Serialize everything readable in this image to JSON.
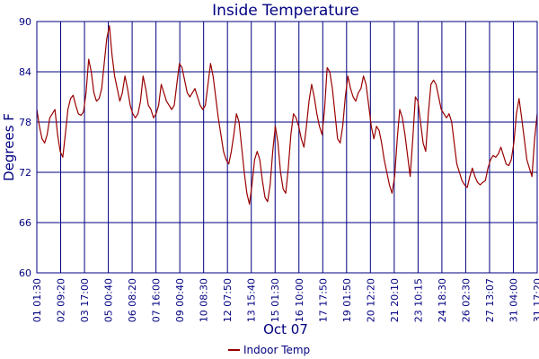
{
  "chart_data": {
    "type": "line",
    "title": "Inside Temperature",
    "xlabel": "Oct 07",
    "ylabel": "Degrees F",
    "ylim": [
      60,
      90
    ],
    "yticks": [
      60,
      66,
      72,
      78,
      84,
      90
    ],
    "xtick_labels": [
      "01 01:30",
      "02 09:20",
      "03 17:00",
      "05 00:40",
      "06 08:20",
      "07 16:00",
      "09 00:40",
      "10 08:30",
      "12 07:50",
      "13 15:40",
      "15 01:30",
      "16 10:00",
      "17 17:50",
      "19 01:50",
      "20 12:20",
      "21 20:10",
      "23 10:15",
      "24 18:30",
      "26 02:30",
      "27 13:07",
      "31 04:00",
      "31 17:20"
    ],
    "grid": true,
    "legend_position": "bottom-center",
    "colors": {
      "line": "#990000",
      "grid": "#000080",
      "axis_text": "#000080"
    },
    "series": [
      {
        "name": "Indoor Temp",
        "values": [
          79.5,
          77.5,
          76.0,
          75.5,
          76.5,
          78.5,
          79.0,
          79.5,
          76.5,
          74.5,
          73.8,
          76.5,
          79.5,
          80.8,
          81.2,
          80.0,
          79.0,
          78.8,
          79.2,
          81.5,
          85.5,
          84.0,
          81.5,
          80.5,
          80.8,
          82.0,
          85.0,
          88.0,
          89.5,
          86.0,
          83.5,
          82.0,
          80.5,
          81.5,
          83.5,
          82.0,
          80.0,
          79.0,
          78.5,
          79.0,
          80.5,
          83.5,
          82.0,
          80.0,
          79.5,
          78.5,
          79.0,
          80.0,
          82.5,
          81.5,
          80.5,
          80.0,
          79.5,
          80.0,
          82.5,
          85.0,
          84.5,
          83.0,
          81.5,
          81.0,
          81.5,
          82.0,
          81.0,
          80.0,
          79.5,
          80.0,
          82.5,
          85.0,
          83.5,
          81.0,
          78.5,
          76.5,
          74.5,
          73.5,
          73.0,
          74.5,
          76.5,
          79.0,
          78.0,
          75.0,
          72.0,
          69.5,
          68.2,
          70.5,
          73.5,
          74.5,
          73.5,
          71.0,
          69.0,
          68.5,
          70.5,
          74.5,
          77.5,
          75.5,
          72.0,
          70.0,
          69.5,
          72.5,
          76.5,
          79.0,
          78.5,
          77.5,
          76.0,
          75.0,
          77.5,
          80.5,
          82.5,
          81.0,
          79.0,
          77.5,
          76.5,
          79.5,
          84.5,
          84.0,
          82.0,
          79.0,
          76.0,
          75.5,
          77.5,
          81.0,
          83.5,
          82.0,
          81.0,
          80.5,
          81.5,
          82.0,
          83.5,
          82.5,
          80.0,
          77.5,
          76.0,
          77.5,
          77.0,
          75.5,
          73.5,
          72.0,
          70.5,
          69.5,
          71.5,
          76.0,
          79.5,
          78.5,
          76.5,
          74.0,
          71.5,
          76.0,
          81.0,
          80.5,
          78.0,
          75.5,
          74.5,
          79.0,
          82.5,
          83.0,
          82.5,
          81.0,
          79.5,
          79.0,
          78.5,
          79.0,
          78.0,
          75.5,
          73.0,
          72.0,
          71.0,
          70.5,
          70.2,
          71.5,
          72.5,
          71.5,
          70.8,
          70.5,
          70.8,
          71.0,
          72.5,
          73.5,
          74.0,
          73.8,
          74.2,
          75.0,
          74.0,
          73.0,
          72.8,
          73.5,
          75.5,
          79.0,
          80.8,
          78.5,
          76.0,
          73.5,
          72.5,
          71.5,
          76.0,
          79.0
        ]
      }
    ]
  }
}
